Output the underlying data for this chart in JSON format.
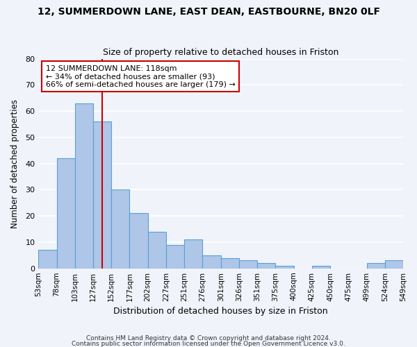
{
  "title": "12, SUMMERDOWN LANE, EAST DEAN, EASTBOURNE, BN20 0LF",
  "subtitle": "Size of property relative to detached houses in Friston",
  "xlabel": "Distribution of detached houses by size in Friston",
  "ylabel": "Number of detached properties",
  "bar_color": "#aec6e8",
  "bar_edge_color": "#5a9fd4",
  "tick_labels": [
    "53sqm",
    "78sqm",
    "103sqm",
    "127sqm",
    "152sqm",
    "177sqm",
    "202sqm",
    "227sqm",
    "251sqm",
    "276sqm",
    "301sqm",
    "326sqm",
    "351sqm",
    "375sqm",
    "400sqm",
    "425sqm",
    "450sqm",
    "475sqm",
    "499sqm",
    "524sqm",
    "549sqm"
  ],
  "values": [
    7,
    42,
    63,
    56,
    30,
    21,
    14,
    9,
    11,
    5,
    4,
    3,
    2,
    1,
    0,
    1,
    0,
    0,
    2,
    3
  ],
  "ylim": [
    0,
    80
  ],
  "yticks": [
    0,
    10,
    20,
    30,
    40,
    50,
    60,
    70,
    80
  ],
  "vline_color": "#cc0000",
  "annotation_text": "12 SUMMERDOWN LANE: 118sqm\n← 34% of detached houses are smaller (93)\n66% of semi-detached houses are larger (179) →",
  "annotation_box_color": "#ffffff",
  "annotation_box_edge": "#cc0000",
  "footer1": "Contains HM Land Registry data © Crown copyright and database right 2024.",
  "footer2": "Contains public sector information licensed under the Open Government Licence v3.0.",
  "background_color": "#f0f4fa",
  "grid_color": "#ffffff"
}
